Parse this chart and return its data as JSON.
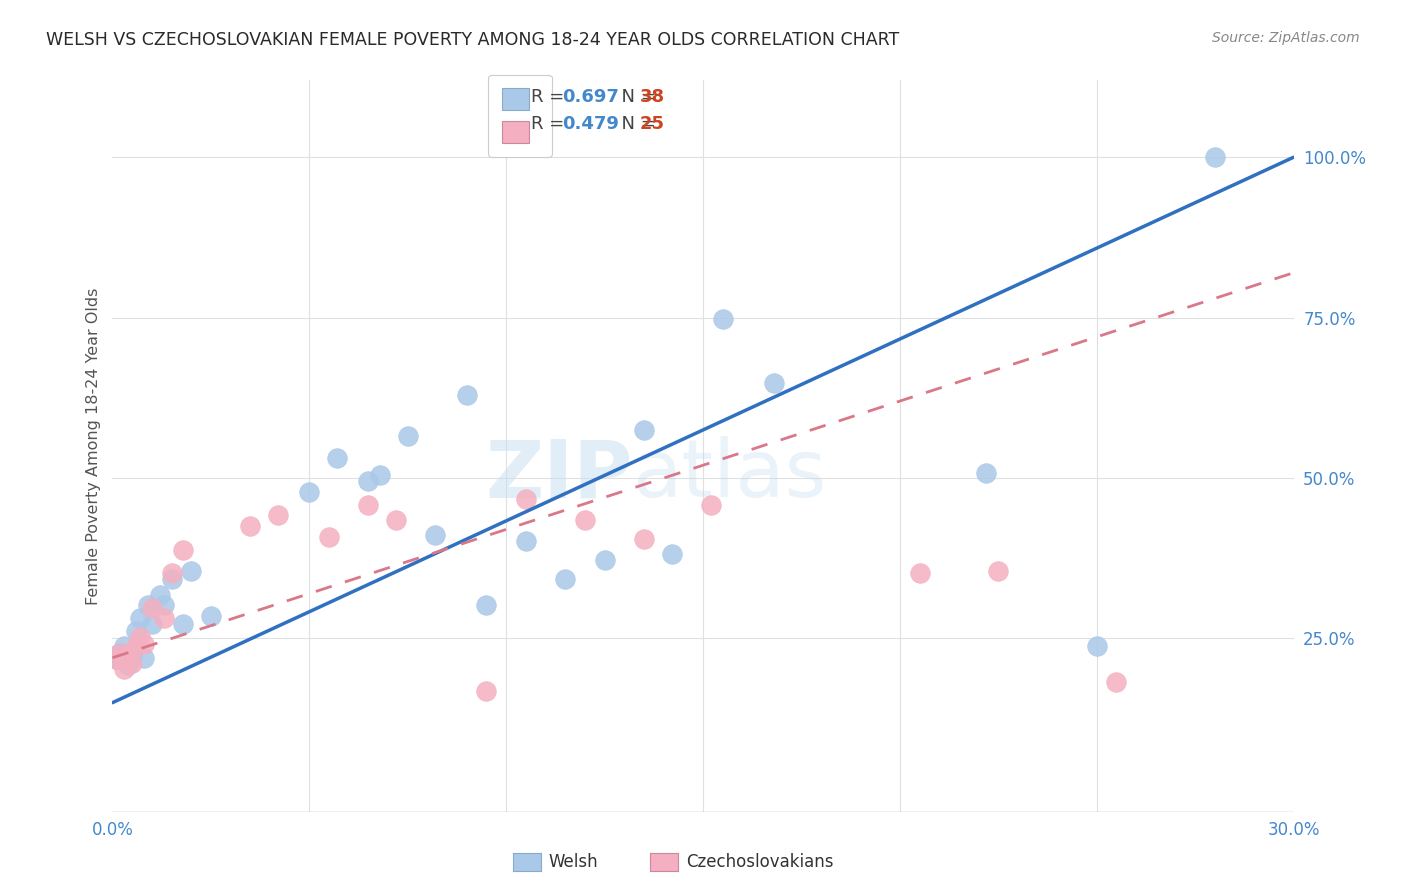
{
  "title": "WELSH VS CZECHOSLOVAKIAN FEMALE POVERTY AMONG 18-24 YEAR OLDS CORRELATION CHART",
  "source": "Source: ZipAtlas.com",
  "ylabel": "Female Poverty Among 18-24 Year Olds",
  "welsh_color": "#aac8e8",
  "welsh_edge_color": "#aac8e8",
  "czech_color": "#f4b0c0",
  "czech_edge_color": "#f4b0c0",
  "welsh_line_color": "#3070c0",
  "czech_line_color": "#d87888",
  "welsh_R": 0.697,
  "welsh_N": 38,
  "czech_R": 0.479,
  "czech_N": 25,
  "xlim": [
    0.0,
    0.3
  ],
  "ylim": [
    -0.02,
    1.12
  ],
  "right_yticks": [
    0.25,
    0.5,
    0.75,
    1.0
  ],
  "right_yticklabels": [
    "25.0%",
    "50.0%",
    "75.0%",
    "100.0%"
  ],
  "watermark": "ZIPatlas",
  "background_color": "#ffffff",
  "grid_color": "#e0e0e0",
  "welsh_line_x0": 0.0,
  "welsh_line_y0": 0.15,
  "welsh_line_x1": 0.3,
  "welsh_line_y1": 1.0,
  "czech_line_x0": 0.0,
  "czech_line_y0": 0.22,
  "czech_line_x1": 0.3,
  "czech_line_y1": 0.82,
  "welsh_x": [
    0.001,
    0.001,
    0.002,
    0.002,
    0.003,
    0.003,
    0.004,
    0.005,
    0.005,
    0.006,
    0.007,
    0.008,
    0.009,
    0.01,
    0.012,
    0.013,
    0.015,
    0.018,
    0.02,
    0.025,
    0.05,
    0.057,
    0.065,
    0.068,
    0.075,
    0.082,
    0.09,
    0.095,
    0.105,
    0.115,
    0.125,
    0.135,
    0.142,
    0.155,
    0.168,
    0.222,
    0.25,
    0.28
  ],
  "welsh_y": [
    0.225,
    0.218,
    0.228,
    0.22,
    0.222,
    0.238,
    0.208,
    0.225,
    0.222,
    0.262,
    0.282,
    0.22,
    0.302,
    0.272,
    0.318,
    0.302,
    0.342,
    0.272,
    0.355,
    0.285,
    0.478,
    0.532,
    0.495,
    0.505,
    0.565,
    0.412,
    0.63,
    0.302,
    0.402,
    0.342,
    0.372,
    0.575,
    0.382,
    0.748,
    0.648,
    0.508,
    0.238,
    1.0
  ],
  "czech_x": [
    0.001,
    0.002,
    0.003,
    0.004,
    0.005,
    0.006,
    0.007,
    0.008,
    0.01,
    0.013,
    0.015,
    0.018,
    0.035,
    0.042,
    0.055,
    0.065,
    0.072,
    0.095,
    0.105,
    0.12,
    0.135,
    0.152,
    0.205,
    0.225,
    0.255
  ],
  "czech_y": [
    0.218,
    0.228,
    0.202,
    0.225,
    0.212,
    0.238,
    0.252,
    0.242,
    0.298,
    0.282,
    0.352,
    0.388,
    0.425,
    0.442,
    0.408,
    0.458,
    0.435,
    0.168,
    0.468,
    0.435,
    0.405,
    0.458,
    0.352,
    0.355,
    0.182
  ]
}
